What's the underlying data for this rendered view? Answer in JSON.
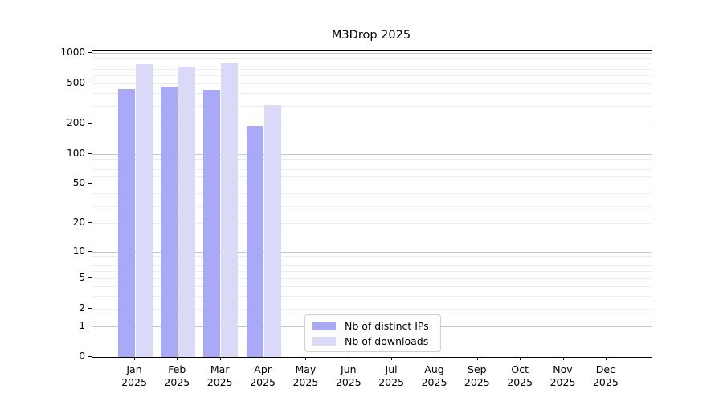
{
  "chart_data": {
    "type": "bar",
    "title": "M3Drop 2025",
    "categories": [
      "Jan",
      "Feb",
      "Mar",
      "Apr",
      "May",
      "Jun",
      "Jul",
      "Aug",
      "Sep",
      "Oct",
      "Nov",
      "Dec"
    ],
    "category_sublabel": "2025",
    "series": [
      {
        "name": "Nb of distinct IPs",
        "color": "#a9a9f7",
        "values": [
          440,
          465,
          430,
          190,
          null,
          null,
          null,
          null,
          null,
          null,
          null,
          null
        ]
      },
      {
        "name": "Nb of downloads",
        "color": "#dadaf8",
        "values": [
          775,
          740,
          800,
          305,
          null,
          null,
          null,
          null,
          null,
          null,
          null,
          null
        ]
      }
    ],
    "xlabel": "",
    "ylabel": "",
    "yticks": [
      0,
      1,
      2,
      5,
      10,
      20,
      50,
      100,
      200,
      500,
      1000
    ],
    "yscale": "log1p",
    "ylim": [
      0,
      1060
    ],
    "grid": true,
    "grid_major_color": "#c6c6c6",
    "grid_minor_color": "#ededed",
    "axis_color": "#000000",
    "legend_position": "inside-bottom-center"
  }
}
